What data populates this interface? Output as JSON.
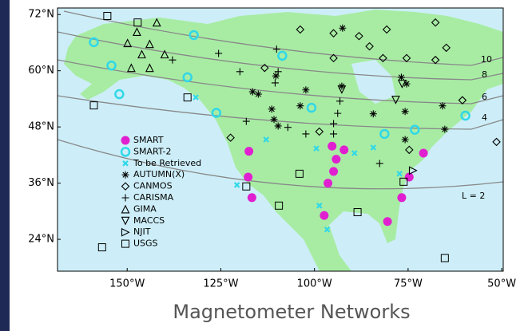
{
  "chart_data": {
    "type": "scatter",
    "caption": "Magnetometer Networks",
    "xlim": [
      -168.6,
      -49.6
    ],
    "ylim": [
      17.2,
      73.4
    ],
    "xticks": [
      {
        "value": -150,
        "label": "150°W"
      },
      {
        "value": -125,
        "label": "125°W"
      },
      {
        "value": -100,
        "label": "100°W"
      },
      {
        "value": -75,
        "label": "75°W"
      },
      {
        "value": -50,
        "label": "50°W"
      }
    ],
    "yticks": [
      {
        "value": 72,
        "label": "72°N"
      },
      {
        "value": 60,
        "label": "60°N"
      },
      {
        "value": 48,
        "label": "48°N"
      },
      {
        "value": 36,
        "label": "36°N"
      },
      {
        "value": 24,
        "label": "24°N"
      }
    ],
    "l_shell_labels": [
      "10",
      "8",
      "6",
      "4",
      "L = 2"
    ],
    "series": [
      {
        "name": "SMART",
        "marker": "dot",
        "color": "#e020d0",
        "x": [
          -117.5,
          -117.7,
          -116.7,
          -95.3,
          -92.1,
          -94.2,
          -94.9,
          -96.4,
          -97.4,
          -76.7,
          -80.5,
          -70.9,
          -74.7
        ],
        "y": [
          42.8,
          37.3,
          32.9,
          43.9,
          43.1,
          41.1,
          38.5,
          36.0,
          29.1,
          32.9,
          27.8,
          42.4,
          37.3
        ]
      },
      {
        "name": "SMART-2",
        "marker": "ring",
        "color": "#30d8e8",
        "x": [
          -158.9,
          -154.2,
          -152.1,
          -133.9,
          -132.2,
          -126.2,
          -108.6,
          -100.8,
          -81.3,
          -73.2,
          -59.7
        ],
        "y": [
          66.1,
          61.1,
          55.0,
          58.6,
          67.6,
          51.0,
          63.2,
          52.1,
          46.5,
          47.4,
          50.4
        ]
      },
      {
        "name": "To be Retrieved",
        "marker": "x",
        "color": "#30d8e8",
        "x": [
          -131.7,
          -120.7,
          -112.9,
          -99.5,
          -98.7,
          -89.3,
          -84.3,
          -77.3,
          -96.6
        ],
        "y": [
          54.3,
          35.6,
          45.3,
          43.4,
          31.2,
          42.4,
          43.6,
          38.0,
          26.1
        ]
      },
      {
        "name": "AUTUMN(X)",
        "marker": "star",
        "color": "#000000",
        "x": [
          -116.5,
          -115.0,
          -111.4,
          -110.8,
          -109.7,
          -103.8,
          -102.3,
          -110.3,
          -92.7,
          -84.3,
          -76.8,
          -75.4,
          -75.8,
          -65.8,
          -65.2,
          -75.8,
          -92.5
        ],
        "y": [
          55.5,
          55.0,
          51.8,
          49.6,
          48.2,
          52.5,
          55.9,
          58.9,
          56.7,
          50.8,
          58.6,
          57.2,
          51.3,
          52.5,
          47.5,
          45.3,
          69.1
        ]
      },
      {
        "name": "CANMOS",
        "marker": "diamond",
        "color": "#000000",
        "x": [
          -103.8,
          -94.9,
          -88.1,
          -80.7,
          -67.7,
          -85.3,
          -81.7,
          -75.4,
          -67.7,
          -64.8,
          -60.5,
          -94.9,
          -113.3,
          -122.4,
          -98.7,
          -74.7,
          -51.4
        ],
        "y": [
          68.8,
          68.0,
          67.4,
          68.8,
          70.3,
          65.2,
          62.7,
          62.7,
          62.3,
          64.9,
          53.7,
          62.7,
          60.6,
          45.7,
          47.0,
          43.1,
          44.8
        ]
      },
      {
        "name": "CARISMA",
        "marker": "plus",
        "color": "#000000",
        "x": [
          -137.9,
          -125.6,
          -119.9,
          -110.1,
          -109.7,
          -110.5,
          -107.1,
          -102.3,
          -94.9,
          -93.2,
          -93.8,
          -82.6,
          -94.9,
          -118.2
        ],
        "y": [
          62.3,
          63.7,
          59.8,
          64.6,
          59.8,
          57.4,
          47.9,
          46.5,
          48.7,
          53.5,
          50.9,
          40.2,
          46.5,
          49.2
        ]
      },
      {
        "name": "GIMA",
        "marker": "triangle",
        "color": "#000000",
        "x": [
          -142.1,
          -147.4,
          -149.9,
          -144.0,
          -140.0,
          -148.9,
          -144.0,
          -146.1
        ],
        "y": [
          70.3,
          68.3,
          65.9,
          65.7,
          63.5,
          60.6,
          60.6,
          63.5
        ]
      },
      {
        "name": "MACCS",
        "marker": "triangle-down",
        "color": "#000000",
        "x": [
          -92.7,
          -78.3,
          -76.6
        ],
        "y": [
          56.0,
          53.8,
          57.2
        ]
      },
      {
        "name": "NJIT",
        "marker": "triangle-right",
        "color": "#000000",
        "x": [
          -73.7
        ],
        "y": [
          38.7
        ]
      },
      {
        "name": "USGS",
        "marker": "square",
        "color": "#000000",
        "x": [
          -155.3,
          -147.2,
          -158.9,
          -133.9,
          -118.2,
          -104.0,
          -109.5,
          -88.5,
          -65.2,
          -156.7,
          -76.2
        ],
        "y": [
          71.7,
          70.3,
          52.6,
          54.3,
          35.3,
          38.0,
          31.2,
          29.8,
          20.0,
          22.3,
          36.3
        ]
      }
    ]
  }
}
